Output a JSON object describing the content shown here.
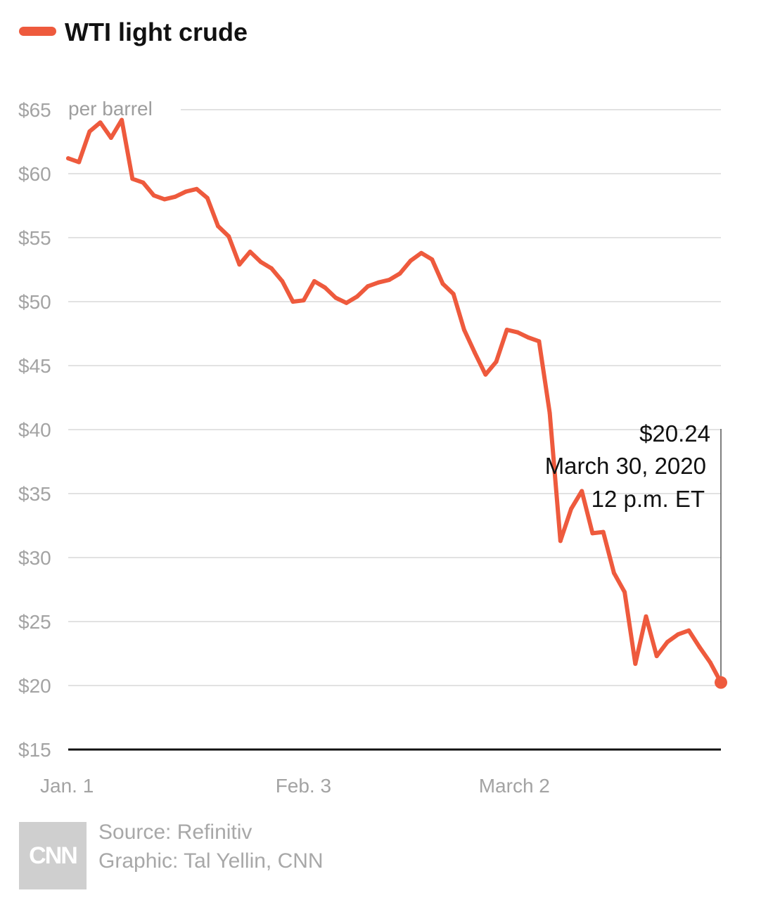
{
  "chart_data": {
    "type": "line",
    "series": [
      {
        "name": "WTI light crude",
        "color": "#ee5a3d",
        "x": [
          "Jan. 1",
          "Jan. 2",
          "Jan. 3",
          "Jan. 6",
          "Jan. 7",
          "Jan. 8",
          "Jan. 9",
          "Jan. 10",
          "Jan. 13",
          "Jan. 14",
          "Jan. 15",
          "Jan. 16",
          "Jan. 17",
          "Jan. 21",
          "Jan. 22",
          "Jan. 23",
          "Jan. 24",
          "Jan. 27",
          "Jan. 28",
          "Jan. 29",
          "Jan. 30",
          "Jan. 31",
          "Feb. 3",
          "Feb. 4",
          "Feb. 5",
          "Feb. 6",
          "Feb. 7",
          "Feb. 10",
          "Feb. 11",
          "Feb. 12",
          "Feb. 13",
          "Feb. 14",
          "Feb. 18",
          "Feb. 19",
          "Feb. 20",
          "Feb. 21",
          "Feb. 24",
          "Feb. 25",
          "Feb. 26",
          "Feb. 27",
          "Feb. 28",
          "March 2",
          "March 3",
          "March 4",
          "March 5",
          "March 6",
          "March 9",
          "March 10",
          "March 11",
          "March 12",
          "March 13",
          "March 16",
          "March 17",
          "March 18",
          "March 19",
          "March 20",
          "March 23",
          "March 24",
          "March 25",
          "March 26",
          "March 27",
          "March 30"
        ],
        "values": [
          61.2,
          60.9,
          63.3,
          64.0,
          62.8,
          64.2,
          59.6,
          59.3,
          58.3,
          58.0,
          58.2,
          58.6,
          58.8,
          58.1,
          55.9,
          55.1,
          52.9,
          53.9,
          53.1,
          52.6,
          51.6,
          50.0,
          50.1,
          51.6,
          51.1,
          50.3,
          49.9,
          50.4,
          51.2,
          51.5,
          51.7,
          52.2,
          53.2,
          53.8,
          53.3,
          51.4,
          50.6,
          47.8,
          46.0,
          44.3,
          45.3,
          47.8,
          47.6,
          47.2,
          46.9,
          41.3,
          31.3,
          33.8,
          35.2,
          31.9,
          32.0,
          28.8,
          27.3,
          21.7,
          25.4,
          22.3,
          23.4,
          24.0,
          24.3,
          23.0,
          21.8,
          20.24
        ]
      }
    ],
    "x_tick_labels": [
      "Jan. 1",
      "Feb. 3",
      "March 2"
    ],
    "y_ticks": [
      15,
      20,
      25,
      30,
      35,
      40,
      45,
      50,
      55,
      60,
      65
    ],
    "y_tick_labels": [
      "$15",
      "$20",
      "$25",
      "$30",
      "$35",
      "$40",
      "$45",
      "$50",
      "$55",
      "$60",
      "$65"
    ],
    "ylim": [
      15,
      65
    ],
    "unit_label": "per barrel",
    "grid": true,
    "legend_position": "top-left",
    "annotation": {
      "value": 20.24,
      "lines": [
        "$20.24",
        "March 30, 2020",
        "12 p.m. ET"
      ]
    }
  },
  "footer": {
    "logo": "CNN",
    "source": "Source: Refinitiv",
    "graphic": "Graphic: Tal Yellin, CNN"
  }
}
